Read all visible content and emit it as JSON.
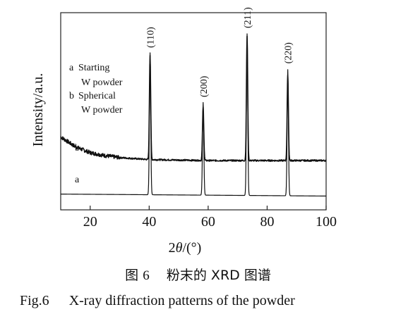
{
  "chart_data": {
    "type": "line",
    "xlabel": "2θ/(°)",
    "ylabel": "Intensity/a.u.",
    "xlim": [
      10,
      100
    ],
    "xticks": [
      "20",
      "40",
      "60",
      "80",
      "100"
    ],
    "x_tick_values": [
      20,
      40,
      60,
      80,
      100
    ],
    "grid": false,
    "legend": {
      "placement": "top-left",
      "entries": [
        {
          "key": "a",
          "line1": "Starting",
          "line2": "W powder"
        },
        {
          "key": "b",
          "line1": "Spherical",
          "line2": "W powder"
        }
      ]
    },
    "series": [
      {
        "name": "a",
        "baseline": 0.08,
        "background": [
          [
            10,
            0.08
          ],
          [
            100,
            0.07
          ]
        ],
        "peaks": [
          [
            40.3,
            0.8
          ],
          [
            58.3,
            0.55
          ],
          [
            73.2,
            0.9
          ],
          [
            87.0,
            0.72
          ]
        ]
      },
      {
        "name": "b",
        "baseline": 0.25,
        "background": [
          [
            10,
            0.37
          ],
          [
            15,
            0.32
          ],
          [
            20,
            0.29
          ],
          [
            25,
            0.275
          ],
          [
            30,
            0.265
          ],
          [
            40,
            0.255
          ],
          [
            60,
            0.25
          ],
          [
            100,
            0.25
          ]
        ],
        "noisy": true,
        "peaks": [
          [
            40.3,
            0.78
          ],
          [
            58.3,
            0.52
          ],
          [
            73.2,
            0.88
          ],
          [
            87.0,
            0.68
          ]
        ]
      }
    ],
    "peak_labels": [
      {
        "text": "(110)",
        "x": 40.3
      },
      {
        "text": "(200)",
        "x": 58.3
      },
      {
        "text": "(211)",
        "x": 73.2
      },
      {
        "text": "(220)",
        "x": 87.0
      }
    ]
  },
  "caption": {
    "cn_prefix": "图",
    "cn_number": "6",
    "cn_title": "粉末的 XRD 图谱",
    "en_label": "Fig.6",
    "en_title": "X-ray diffraction patterns of the powder"
  }
}
